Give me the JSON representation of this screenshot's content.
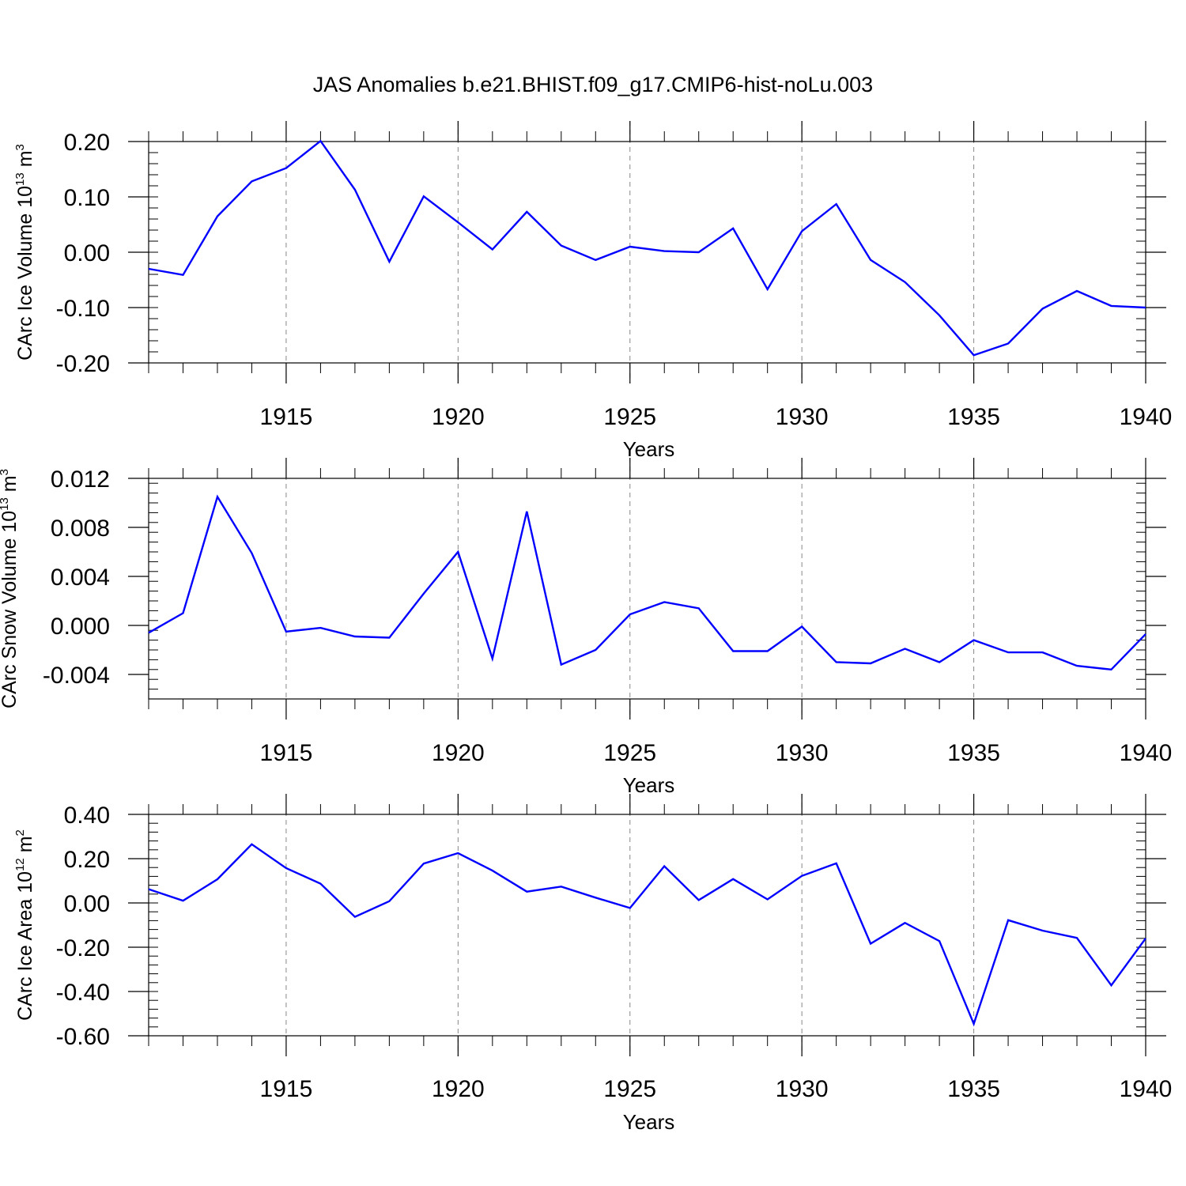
{
  "chart_data": {
    "title": "JAS Anomalies b.e21.BHIST.f09_g17.CMIP6-hist-noLu.003",
    "panels": [
      {
        "type": "line",
        "ylabel": {
          "main": "CArc Ice Volume 10",
          "exp": "13",
          "unit": " m",
          "unit_exp": "3"
        },
        "xlabel": "Years",
        "xlim": [
          1911,
          1940
        ],
        "ylim": [
          -0.2,
          0.2
        ],
        "yticks": [
          0.2,
          0.1,
          0.0,
          -0.1,
          -0.2
        ],
        "ytick_labels": [
          "0.20",
          "0.10",
          "0.00",
          "-0.10",
          "-0.20"
        ],
        "xticks": [
          1915,
          1920,
          1925,
          1930,
          1935,
          1940
        ],
        "xtick_labels": [
          "1915",
          "1920",
          "1925",
          "1930",
          "1935",
          "1940"
        ],
        "series": [
          {
            "name": "Ice Volume",
            "color": "#0000ff",
            "x": [
              1911,
              1912,
              1913,
              1914,
              1915,
              1916,
              1917,
              1918,
              1919,
              1920,
              1921,
              1922,
              1923,
              1924,
              1925,
              1926,
              1927,
              1928,
              1929,
              1930,
              1931,
              1932,
              1933,
              1934,
              1935,
              1936,
              1937,
              1938,
              1939,
              1940
            ],
            "y": [
              -0.03,
              -0.041,
              0.065,
              0.128,
              0.152,
              0.201,
              0.113,
              -0.017,
              0.101,
              0.054,
              0.005,
              0.073,
              0.012,
              -0.014,
              0.01,
              0.002,
              0.0,
              0.043,
              -0.067,
              0.038,
              0.087,
              -0.014,
              -0.054,
              -0.114,
              -0.186,
              -0.165,
              -0.102,
              -0.07,
              -0.097,
              -0.1
            ]
          }
        ]
      },
      {
        "type": "line",
        "ylabel": {
          "main": "CArc Snow Volume 10",
          "exp": "13",
          "unit": " m",
          "unit_exp": "3"
        },
        "xlabel": "Years",
        "xlim": [
          1911,
          1940
        ],
        "ylim": [
          -0.006,
          0.012
        ],
        "yticks": [
          0.012,
          0.008,
          0.004,
          0.0,
          -0.004
        ],
        "ytick_labels": [
          "0.012",
          "0.008",
          "0.004",
          "0.000",
          "-0.004"
        ],
        "xticks": [
          1915,
          1920,
          1925,
          1930,
          1935,
          1940
        ],
        "xtick_labels": [
          "1915",
          "1920",
          "1925",
          "1930",
          "1935",
          "1940"
        ],
        "series": [
          {
            "name": "Snow Volume",
            "color": "#0000ff",
            "x": [
              1911,
              1912,
              1913,
              1914,
              1915,
              1916,
              1917,
              1918,
              1919,
              1920,
              1921,
              1922,
              1923,
              1924,
              1925,
              1926,
              1927,
              1928,
              1929,
              1930,
              1931,
              1932,
              1933,
              1934,
              1935,
              1936,
              1937,
              1938,
              1939,
              1940
            ],
            "y": [
              -0.0006,
              0.001,
              0.0105,
              0.0059,
              -0.0005,
              -0.0002,
              -0.0009,
              -0.001,
              0.0026,
              0.006,
              -0.0027,
              0.0093,
              -0.0032,
              -0.002,
              0.0009,
              0.0019,
              0.0014,
              -0.0021,
              -0.0021,
              -0.0001,
              -0.003,
              -0.0031,
              -0.0019,
              -0.003,
              -0.0012,
              -0.0022,
              -0.0022,
              -0.0033,
              -0.0036,
              -0.0007
            ]
          }
        ]
      },
      {
        "type": "line",
        "ylabel": {
          "main": "CArc Ice Area 10",
          "exp": "12",
          "unit": " m",
          "unit_exp": "2"
        },
        "xlabel": "Years",
        "xlim": [
          1911,
          1940
        ],
        "ylim": [
          -0.6,
          0.4
        ],
        "yticks": [
          0.4,
          0.2,
          0.0,
          -0.2,
          -0.4,
          -0.6
        ],
        "ytick_labels": [
          "0.40",
          "0.20",
          "0.00",
          "-0.20",
          "-0.40",
          "-0.60"
        ],
        "xticks": [
          1915,
          1920,
          1925,
          1930,
          1935,
          1940
        ],
        "xtick_labels": [
          "1915",
          "1920",
          "1925",
          "1930",
          "1935",
          "1940"
        ],
        "series": [
          {
            "name": "Ice Area",
            "color": "#0000ff",
            "x": [
              1911,
              1912,
              1913,
              1914,
              1915,
              1916,
              1917,
              1918,
              1919,
              1920,
              1921,
              1922,
              1923,
              1924,
              1925,
              1926,
              1927,
              1928,
              1929,
              1930,
              1931,
              1932,
              1933,
              1934,
              1935,
              1936,
              1937,
              1938,
              1939,
              1940
            ],
            "y": [
              0.062,
              0.01,
              0.107,
              0.265,
              0.157,
              0.087,
              -0.063,
              0.008,
              0.178,
              0.225,
              0.146,
              0.051,
              0.074,
              0.024,
              -0.023,
              0.166,
              0.013,
              0.108,
              0.016,
              0.122,
              0.179,
              -0.184,
              -0.09,
              -0.172,
              -0.546,
              -0.078,
              -0.125,
              -0.158,
              -0.372,
              -0.16
            ]
          }
        ]
      }
    ]
  }
}
